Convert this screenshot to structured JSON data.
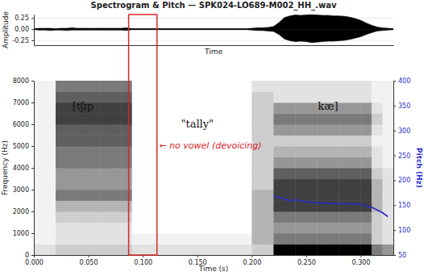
{
  "chart_data": [
    {
      "type": "area",
      "title": "Spectrogram & Pitch — SPK024-LO689-M002_HH_.wav",
      "xlabel": "Time",
      "ylabel": "Amplitude",
      "xlim": [
        0,
        0.33
      ],
      "ylim": [
        -0.36,
        0.33
      ],
      "yticks": [
        {
          "value": -0.25,
          "label": "-0.25"
        },
        {
          "value": 0,
          "label": "0.00"
        },
        {
          "value": 0.25,
          "label": "0.25"
        }
      ],
      "grid": true,
      "tick_labels": "y",
      "x": [
        0,
        0.005,
        0.01,
        0.015,
        0.02,
        0.025,
        0.03,
        0.035,
        0.04,
        0.045,
        0.05,
        0.055,
        0.06,
        0.065,
        0.07,
        0.075,
        0.08,
        0.085,
        0.09,
        0.095,
        0.1,
        0.105,
        0.11,
        0.115,
        0.12,
        0.125,
        0.13,
        0.135,
        0.14,
        0.145,
        0.15,
        0.155,
        0.16,
        0.165,
        0.17,
        0.175,
        0.18,
        0.185,
        0.19,
        0.195,
        0.2,
        0.205,
        0.21,
        0.215,
        0.22,
        0.225,
        0.23,
        0.235,
        0.24,
        0.245,
        0.25,
        0.255,
        0.26,
        0.265,
        0.27,
        0.275,
        0.28,
        0.285,
        0.29,
        0.295,
        0.3,
        0.305,
        0.31,
        0.315,
        0.32,
        0.325,
        0.33
      ],
      "series": [
        {
          "color": "#000000",
          "values": [
            0.01,
            0.02,
            0.02,
            0.02,
            0.01,
            0.02,
            0.02,
            0.03,
            0.02,
            0.02,
            0.02,
            0.02,
            0.02,
            0.02,
            0.02,
            0.02,
            0.02,
            0.03,
            0.01,
            0.01,
            0.01,
            0.01,
            0.01,
            0.01,
            0.01,
            0.01,
            0.01,
            0.01,
            0.01,
            0.01,
            0.01,
            0.01,
            0.01,
            0.01,
            0.01,
            0.01,
            0.01,
            0.01,
            0.01,
            0.01,
            0.02,
            0.03,
            0.03,
            0.04,
            0.06,
            0.15,
            0.26,
            0.3,
            0.32,
            0.31,
            0.32,
            0.33,
            0.32,
            0.31,
            0.31,
            0.3,
            0.3,
            0.29,
            0.27,
            0.24,
            0.2,
            0.14,
            0.09,
            0.05,
            0.03,
            0.02,
            0.01
          ]
        },
        {
          "color": "#000000",
          "values": [
            -0.01,
            -0.02,
            -0.02,
            -0.03,
            -0.02,
            -0.02,
            -0.03,
            -0.02,
            -0.02,
            -0.02,
            -0.02,
            -0.02,
            -0.02,
            -0.02,
            -0.02,
            -0.02,
            -0.02,
            -0.03,
            -0.01,
            -0.01,
            -0.01,
            -0.01,
            -0.01,
            -0.01,
            -0.01,
            -0.01,
            -0.01,
            -0.01,
            -0.01,
            -0.01,
            -0.01,
            -0.01,
            -0.01,
            -0.01,
            -0.01,
            -0.01,
            -0.01,
            -0.01,
            -0.01,
            -0.01,
            -0.02,
            -0.03,
            -0.03,
            -0.04,
            -0.05,
            -0.12,
            -0.22,
            -0.26,
            -0.28,
            -0.27,
            -0.28,
            -0.3,
            -0.29,
            -0.28,
            -0.27,
            -0.27,
            -0.26,
            -0.25,
            -0.23,
            -0.2,
            -0.17,
            -0.12,
            -0.08,
            -0.04,
            -0.03,
            -0.02,
            -0.01
          ]
        }
      ]
    },
    {
      "type": "spectrogram",
      "xlabel": "Time (s)",
      "ylabel": "Frequency (Hz)",
      "y2label": "Pitch (Hz)",
      "xlim": [
        0,
        0.33
      ],
      "xticks": [
        {
          "value": 0,
          "label": "0.000"
        },
        {
          "value": 0.05,
          "label": "0.050"
        },
        {
          "value": 0.1,
          "label": "0.100"
        },
        {
          "value": 0.15,
          "label": "0.150"
        },
        {
          "value": 0.2,
          "label": "0.200"
        },
        {
          "value": 0.25,
          "label": "0.250"
        },
        {
          "value": 0.3,
          "label": "0.300"
        }
      ],
      "ylim": [
        0,
        8000
      ],
      "yticks": [
        0,
        1000,
        2000,
        3000,
        4000,
        5000,
        6000,
        7000,
        8000
      ],
      "y2lim": [
        50,
        400
      ],
      "y2ticks": [
        50,
        100,
        150,
        200,
        250,
        300,
        350,
        400
      ],
      "spectrogram": {
        "time_bins": [
          0,
          0.01,
          0.02,
          0.03,
          0.04,
          0.05,
          0.06,
          0.07,
          0.08,
          0.09,
          0.1,
          0.11,
          0.12,
          0.13,
          0.14,
          0.15,
          0.16,
          0.17,
          0.18,
          0.19,
          0.2,
          0.21,
          0.22,
          0.23,
          0.24,
          0.25,
          0.26,
          0.27,
          0.28,
          0.29,
          0.3,
          0.31,
          0.32,
          0.33
        ],
        "freq_bins": [
          0,
          500,
          1000,
          1500,
          2000,
          2500,
          3000,
          3500,
          4000,
          4500,
          5000,
          5500,
          6000,
          6500,
          7000,
          7500,
          8000
        ],
        "clim": [
          0,
          1
        ],
        "intensity": [
          [
            0.2,
            0.2,
            0.3,
            0.3,
            0.3,
            0.3,
            0.3,
            0.3,
            0.3,
            0.2,
            0.2,
            0.2,
            0.2,
            0.2,
            0.2,
            0.2,
            0.2,
            0.2,
            0.2,
            0.2,
            0.3,
            0.3,
            1,
            1,
            1,
            1,
            1,
            1,
            1,
            1,
            1,
            0.6,
            0.5
          ],
          [
            0.1,
            0.1,
            0.2,
            0.2,
            0.2,
            0.2,
            0.2,
            0.2,
            0.2,
            0.1,
            0.1,
            0.1,
            0.1,
            0.1,
            0.1,
            0.1,
            0.1,
            0.1,
            0.1,
            0.1,
            0.4,
            0.4,
            0.6,
            0.6,
            0.6,
            0.6,
            0.6,
            0.6,
            0.6,
            0.6,
            0.6,
            0.3,
            0.2
          ],
          [
            0.1,
            0.1,
            0.2,
            0.2,
            0.2,
            0.2,
            0.2,
            0.2,
            0.2,
            0,
            0,
            0,
            0,
            0,
            0,
            0,
            0,
            0,
            0,
            0,
            0.4,
            0.4,
            0.5,
            0.5,
            0.5,
            0.5,
            0.5,
            0.5,
            0.5,
            0.5,
            0.5,
            0.3,
            0.2
          ],
          [
            0.1,
            0.1,
            0.3,
            0.3,
            0.3,
            0.3,
            0.3,
            0.3,
            0.3,
            0,
            0,
            0,
            0,
            0,
            0,
            0,
            0,
            0,
            0,
            0,
            0.4,
            0.4,
            0.6,
            0.6,
            0.6,
            0.6,
            0.6,
            0.6,
            0.6,
            0.6,
            0.6,
            0.3,
            0.2
          ],
          [
            0.1,
            0.1,
            0.4,
            0.4,
            0.4,
            0.4,
            0.4,
            0.4,
            0.4,
            0,
            0,
            0,
            0,
            0,
            0,
            0,
            0,
            0,
            0,
            0,
            0.4,
            0.4,
            0.8,
            0.8,
            0.8,
            0.8,
            0.8,
            0.8,
            0.8,
            0.8,
            0.8,
            0.4,
            0.2
          ],
          [
            0.1,
            0.1,
            0.6,
            0.6,
            0.6,
            0.6,
            0.6,
            0.6,
            0.6,
            0,
            0,
            0,
            0,
            0,
            0,
            0,
            0,
            0,
            0,
            0,
            0.4,
            0.4,
            0.8,
            0.8,
            0.8,
            0.8,
            0.8,
            0.8,
            0.8,
            0.8,
            0.8,
            0.4,
            0.2
          ],
          [
            0.1,
            0.1,
            0.5,
            0.5,
            0.5,
            0.5,
            0.5,
            0.5,
            0.5,
            0,
            0,
            0,
            0,
            0,
            0,
            0,
            0,
            0,
            0,
            0,
            0.3,
            0.3,
            0.8,
            0.8,
            0.8,
            0.8,
            0.8,
            0.8,
            0.8,
            0.8,
            0.8,
            0.4,
            0.2
          ],
          [
            0.1,
            0.1,
            0.5,
            0.5,
            0.5,
            0.5,
            0.5,
            0.5,
            0.5,
            0,
            0,
            0,
            0,
            0,
            0,
            0,
            0,
            0,
            0,
            0,
            0.3,
            0.3,
            0.7,
            0.7,
            0.7,
            0.7,
            0.7,
            0.7,
            0.7,
            0.7,
            0.7,
            0.3,
            0.2
          ],
          [
            0.1,
            0.1,
            0.6,
            0.6,
            0.6,
            0.6,
            0.6,
            0.6,
            0.6,
            0,
            0,
            0,
            0,
            0,
            0,
            0,
            0,
            0,
            0,
            0,
            0.3,
            0.3,
            0.5,
            0.5,
            0.5,
            0.5,
            0.5,
            0.5,
            0.5,
            0.5,
            0.5,
            0.2,
            0.1
          ],
          [
            0.1,
            0.1,
            0.6,
            0.6,
            0.6,
            0.6,
            0.6,
            0.6,
            0.6,
            0,
            0,
            0,
            0,
            0,
            0,
            0,
            0,
            0,
            0,
            0,
            0.3,
            0.3,
            0.4,
            0.4,
            0.4,
            0.4,
            0.4,
            0.4,
            0.4,
            0.4,
            0.4,
            0.2,
            0.1
          ],
          [
            0.1,
            0.1,
            0.7,
            0.7,
            0.7,
            0.7,
            0.7,
            0.7,
            0.7,
            0,
            0,
            0,
            0,
            0,
            0,
            0,
            0,
            0,
            0,
            0,
            0.3,
            0.3,
            0.3,
            0.3,
            0.3,
            0.3,
            0.3,
            0.3,
            0.3,
            0.3,
            0.3,
            0.1,
            0.1
          ],
          [
            0.1,
            0.1,
            0.7,
            0.7,
            0.7,
            0.7,
            0.7,
            0.7,
            0.7,
            0,
            0,
            0,
            0,
            0,
            0,
            0,
            0,
            0,
            0,
            0,
            0.3,
            0.3,
            0.5,
            0.5,
            0.5,
            0.5,
            0.5,
            0.5,
            0.5,
            0.5,
            0.5,
            0.2,
            0.1
          ],
          [
            0.1,
            0.1,
            0.8,
            0.8,
            0.8,
            0.8,
            0.8,
            0.8,
            0.8,
            0,
            0,
            0,
            0,
            0,
            0,
            0,
            0,
            0,
            0,
            0,
            0.3,
            0.3,
            0.6,
            0.6,
            0.6,
            0.6,
            0.6,
            0.6,
            0.6,
            0.6,
            0.6,
            0.3,
            0.1
          ],
          [
            0.1,
            0.1,
            0.8,
            0.8,
            0.8,
            0.8,
            0.8,
            0.8,
            0.8,
            0,
            0,
            0,
            0,
            0,
            0,
            0,
            0,
            0,
            0,
            0,
            0.3,
            0.3,
            0.5,
            0.5,
            0.5,
            0.5,
            0.5,
            0.5,
            0.5,
            0.5,
            0.5,
            0.2,
            0.1
          ],
          [
            0.1,
            0.1,
            0.7,
            0.7,
            0.7,
            0.7,
            0.7,
            0.7,
            0.7,
            0,
            0,
            0,
            0,
            0,
            0,
            0,
            0,
            0,
            0,
            0,
            0.3,
            0.3,
            0.2,
            0.2,
            0.2,
            0.2,
            0.2,
            0.2,
            0.2,
            0.2,
            0.2,
            0.1,
            0.1
          ],
          [
            0.1,
            0.1,
            0.6,
            0.6,
            0.6,
            0.6,
            0.6,
            0.6,
            0.6,
            0,
            0,
            0,
            0,
            0,
            0,
            0,
            0,
            0,
            0,
            0,
            0.2,
            0.2,
            0.2,
            0.2,
            0.2,
            0.2,
            0.2,
            0.2,
            0.2,
            0.2,
            0.2,
            0.1,
            0.1
          ]
        ]
      },
      "series": [
        {
          "type": "line",
          "axis": "y2",
          "color": "#2a2ad0",
          "x": [
            0.22,
            0.23,
            0.235,
            0.24,
            0.25,
            0.26,
            0.27,
            0.28,
            0.29,
            0.3,
            0.31,
            0.32,
            0.325
          ],
          "values": [
            168,
            163,
            159,
            161,
            157,
            155,
            154,
            153,
            153,
            152,
            146,
            135,
            127
          ]
        }
      ],
      "highlight": {
        "x": [
          0.087,
          0.113
        ],
        "color": "#d62728"
      },
      "annotations": [
        {
          "text": "[tʃɪp",
          "x": 0.045,
          "y": 6800
        },
        {
          "text": "\"tally\"",
          "x": 0.15,
          "y": 6000
        },
        {
          "text": "kæ]",
          "x": 0.27,
          "y": 6800
        },
        {
          "text": "← no vowel (devoicing)",
          "x": 0.115,
          "y": 5000,
          "color": "#d62728"
        }
      ]
    }
  ]
}
